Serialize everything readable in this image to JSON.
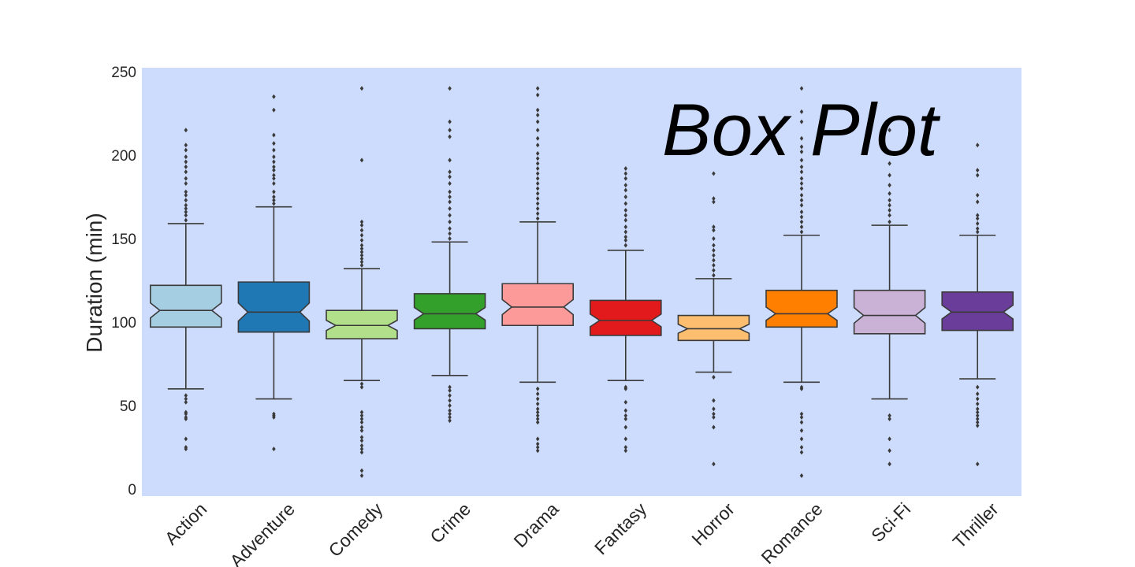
{
  "chart_data": {
    "type": "boxplot",
    "title": "Box Plot",
    "xlabel": "",
    "ylabel": "Duration (min)",
    "ylim": [
      0,
      250
    ],
    "yticks": [
      "0",
      "50",
      "100",
      "150",
      "200",
      "250"
    ],
    "grid": false,
    "legend": "none",
    "notched": true,
    "background_color": "#cddcfd",
    "categories": [
      "Action",
      "Adventure",
      "Comedy",
      "Crime",
      "Drama",
      "Fantasy",
      "Horror",
      "Romance",
      "Sci-Fi",
      "Thriller"
    ],
    "colors": [
      "#a6cee3",
      "#1f78b4",
      "#b2df8a",
      "#33a02c",
      "#fb9a99",
      "#e31a1c",
      "#fdbf6f",
      "#ff7f00",
      "#cab2d6",
      "#6a3d9a"
    ],
    "series": [
      {
        "category": "Action",
        "whisker_low": 60,
        "q1": 97,
        "median": 107,
        "q3": 122,
        "whisker_high": 159,
        "outliers": [
          24,
          25,
          30,
          42,
          43,
          45,
          46,
          52,
          54,
          56,
          161,
          164,
          166,
          168,
          170,
          173,
          176,
          178,
          183,
          186,
          190,
          193,
          196,
          199,
          203,
          206,
          215
        ]
      },
      {
        "category": "Adventure",
        "whisker_low": 54,
        "q1": 94,
        "median": 106,
        "q3": 124,
        "whisker_high": 169,
        "outliers": [
          24,
          43,
          44,
          45,
          171,
          173,
          175,
          178,
          183,
          186,
          188,
          191,
          193,
          196,
          199,
          203,
          207,
          212,
          227,
          235
        ]
      },
      {
        "category": "Comedy",
        "whisker_low": 65,
        "q1": 90,
        "median": 98,
        "q3": 107,
        "whisker_high": 132,
        "outliers": [
          8,
          11,
          22,
          24,
          26,
          29,
          31,
          35,
          37,
          40,
          42,
          44,
          46,
          61,
          63,
          134,
          136,
          138,
          140,
          142,
          144,
          146,
          149,
          152,
          155,
          158,
          160,
          197,
          240
        ]
      },
      {
        "category": "Crime",
        "whisker_low": 68,
        "q1": 96,
        "median": 105,
        "q3": 117,
        "whisker_high": 148,
        "outliers": [
          41,
          43,
          45,
          47,
          50,
          53,
          56,
          59,
          61,
          150,
          153,
          156,
          160,
          164,
          168,
          172,
          175,
          178,
          183,
          187,
          190,
          197,
          211,
          215,
          220,
          240
        ]
      },
      {
        "category": "Drama",
        "whisker_low": 64,
        "q1": 98,
        "median": 109,
        "q3": 123,
        "whisker_high": 160,
        "outliers": [
          23,
          25,
          27,
          30,
          40,
          42,
          44,
          46,
          48,
          51,
          54,
          57,
          60,
          162,
          165,
          168,
          171,
          174,
          177,
          180,
          183,
          186,
          189,
          192,
          195,
          198,
          201,
          206,
          210,
          215,
          220,
          224,
          227,
          236,
          240
        ]
      },
      {
        "category": "Fantasy",
        "whisker_low": 65,
        "q1": 92,
        "median": 101,
        "q3": 113,
        "whisker_high": 143,
        "outliers": [
          23,
          25,
          30,
          37,
          42,
          44,
          47,
          52,
          60,
          61,
          146,
          149,
          151,
          154,
          157,
          161,
          164,
          167,
          171,
          175,
          179,
          182,
          186,
          189,
          192
        ]
      },
      {
        "category": "Horror",
        "whisker_low": 70,
        "q1": 89,
        "median": 96,
        "q3": 104,
        "whisker_high": 126,
        "outliers": [
          15,
          37,
          43,
          45,
          48,
          53,
          67,
          128,
          131,
          134,
          137,
          140,
          143,
          146,
          150,
          155,
          157,
          172,
          174,
          189
        ]
      },
      {
        "category": "Romance",
        "whisker_low": 64,
        "q1": 97,
        "median": 105,
        "q3": 119,
        "whisker_high": 152,
        "outliers": [
          8,
          22,
          25,
          30,
          35,
          40,
          43,
          45,
          60,
          61,
          154,
          157,
          160,
          163,
          166,
          170,
          173,
          176,
          180,
          183,
          186,
          190,
          193,
          197,
          202,
          205,
          210,
          220,
          226,
          240
        ]
      },
      {
        "category": "Sci-Fi",
        "whisker_low": 54,
        "q1": 93,
        "median": 104,
        "q3": 119,
        "whisker_high": 158,
        "outliers": [
          15,
          23,
          30,
          42,
          44,
          160,
          164,
          167,
          170,
          173,
          177,
          182,
          188,
          195,
          215
        ]
      },
      {
        "category": "Thriller",
        "whisker_low": 66,
        "q1": 95,
        "median": 106,
        "q3": 118,
        "whisker_high": 152,
        "outliers": [
          15,
          38,
          40,
          42,
          44,
          46,
          48,
          51,
          54,
          57,
          61,
          154,
          156,
          159,
          162,
          164,
          172,
          176,
          188,
          191,
          206
        ]
      }
    ]
  }
}
